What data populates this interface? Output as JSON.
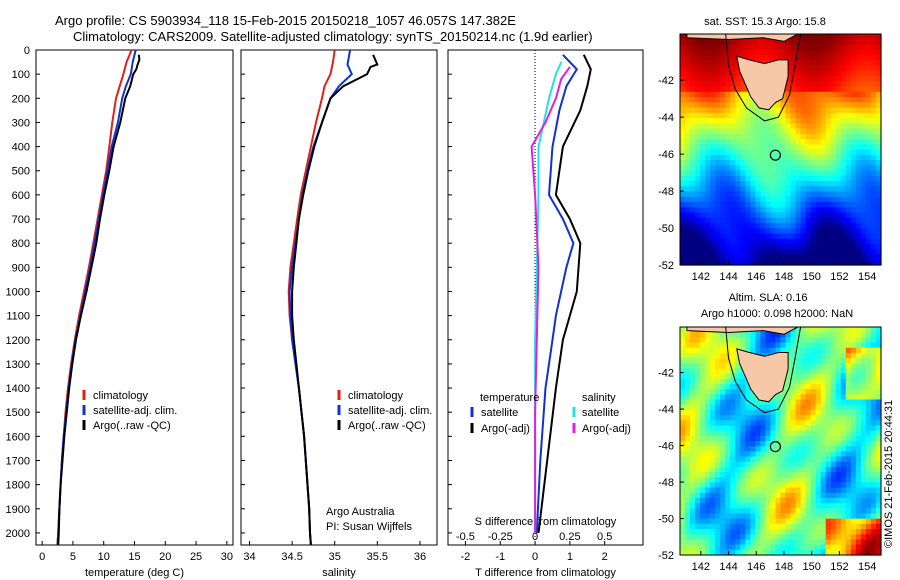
{
  "title": {
    "line1": "Argo profile: CS 5903934_118 15-Feb-2015 20150218_1057 46.057S 147.382E",
    "line2": "Climatology: CARS2009. Satellite-adjusted climatology: synTS_20150214.nc (1.9d earlier)"
  },
  "timestamp": "©IMOS 21-Feb-2015 20:44:31",
  "colors": {
    "climatology": "#e0201a",
    "satellite": "#1030d0",
    "argo": "#000000",
    "sat_salinity": "#20e0e8",
    "argo_salinity": "#e020e0"
  },
  "chart_data": [
    {
      "type": "line",
      "xlabel": "temperature (deg C)",
      "ylabel": "",
      "xlim": [
        -1,
        31
      ],
      "ylim": [
        2050,
        0
      ],
      "xticks": [
        0,
        5,
        10,
        15,
        20,
        25,
        30
      ],
      "yticks": [
        0,
        100,
        200,
        300,
        400,
        500,
        600,
        700,
        800,
        900,
        1000,
        1100,
        1200,
        1300,
        1400,
        1500,
        1600,
        1700,
        1800,
        1900,
        2000
      ],
      "legend": [
        "climatology",
        "satellite-adj. clim.",
        "Argo(..raw -QC)"
      ],
      "series": [
        {
          "name": "climatology",
          "color": "#e0201a",
          "points": [
            [
              14.5,
              0
            ],
            [
              14.2,
              20
            ],
            [
              13.7,
              50
            ],
            [
              13.2,
              100
            ],
            [
              12.6,
              150
            ],
            [
              12.0,
              200
            ],
            [
              11.4,
              300
            ],
            [
              10.9,
              400
            ],
            [
              10.4,
              500
            ],
            [
              9.7,
              600
            ],
            [
              9.0,
              700
            ],
            [
              8.3,
              800
            ],
            [
              7.6,
              900
            ],
            [
              6.8,
              1000
            ],
            [
              6.0,
              1100
            ],
            [
              5.3,
              1200
            ],
            [
              4.7,
              1300
            ],
            [
              4.2,
              1400
            ],
            [
              3.8,
              1500
            ],
            [
              3.5,
              1600
            ],
            [
              3.2,
              1700
            ],
            [
              3.0,
              1800
            ],
            [
              2.8,
              1900
            ],
            [
              2.6,
              2000
            ],
            [
              2.5,
              2050
            ]
          ]
        },
        {
          "name": "satellite-adj. clim.",
          "color": "#1030d0",
          "points": [
            [
              15.2,
              0
            ],
            [
              15.0,
              20
            ],
            [
              14.7,
              50
            ],
            [
              14.4,
              100
            ],
            [
              13.6,
              150
            ],
            [
              13.0,
              200
            ],
            [
              12.3,
              300
            ],
            [
              11.3,
              400
            ],
            [
              10.6,
              500
            ],
            [
              9.9,
              600
            ],
            [
              9.2,
              700
            ],
            [
              8.5,
              800
            ],
            [
              7.8,
              900
            ],
            [
              7.0,
              1000
            ],
            [
              6.2,
              1100
            ],
            [
              5.4,
              1200
            ],
            [
              4.8,
              1300
            ],
            [
              4.3,
              1400
            ],
            [
              3.9,
              1500
            ],
            [
              3.5,
              1600
            ],
            [
              3.2,
              1700
            ],
            [
              3.0,
              1800
            ],
            [
              2.8,
              1900
            ],
            [
              2.6,
              2000
            ],
            [
              2.5,
              2050
            ]
          ]
        },
        {
          "name": "Argo(..raw -QC)",
          "color": "#000000",
          "points": [
            [
              15.7,
              20
            ],
            [
              15.8,
              40
            ],
            [
              15.5,
              60
            ],
            [
              15.3,
              80
            ],
            [
              14.8,
              100
            ],
            [
              14.3,
              150
            ],
            [
              13.5,
              200
            ],
            [
              12.7,
              300
            ],
            [
              11.6,
              400
            ],
            [
              10.9,
              500
            ],
            [
              10.1,
              600
            ],
            [
              9.4,
              700
            ],
            [
              8.8,
              800
            ],
            [
              8.0,
              900
            ],
            [
              7.2,
              1000
            ],
            [
              6.3,
              1100
            ],
            [
              5.5,
              1200
            ],
            [
              4.9,
              1300
            ],
            [
              4.4,
              1400
            ],
            [
              4.0,
              1500
            ],
            [
              3.6,
              1600
            ],
            [
              3.3,
              1700
            ],
            [
              3.0,
              1800
            ],
            [
              2.8,
              1900
            ],
            [
              2.7,
              2000
            ],
            [
              2.6,
              2050
            ]
          ]
        }
      ]
    },
    {
      "type": "line",
      "xlabel": "salinity",
      "ylabel": "",
      "xlim": [
        33.9,
        36.2
      ],
      "ylim": [
        2050,
        0
      ],
      "xticks": [
        34,
        34.5,
        35,
        35.5,
        36
      ],
      "xticklabels": [
        "34",
        "34.5",
        "35",
        "35.5",
        "36"
      ],
      "legend": [
        "climatology",
        "satellite-adj. clim.",
        "Argo(..raw -QC)"
      ],
      "annotations": [
        "Argo Australia",
        "PI: Susan Wijffels"
      ],
      "series": [
        {
          "name": "climatology",
          "color": "#e0201a",
          "points": [
            [
              35.0,
              0
            ],
            [
              34.98,
              50
            ],
            [
              34.95,
              100
            ],
            [
              34.88,
              150
            ],
            [
              34.85,
              200
            ],
            [
              34.78,
              300
            ],
            [
              34.72,
              400
            ],
            [
              34.66,
              500
            ],
            [
              34.6,
              600
            ],
            [
              34.56,
              700
            ],
            [
              34.52,
              800
            ],
            [
              34.48,
              900
            ],
            [
              34.46,
              1000
            ],
            [
              34.47,
              1100
            ],
            [
              34.5,
              1200
            ],
            [
              34.54,
              1300
            ],
            [
              34.58,
              1400
            ],
            [
              34.61,
              1500
            ],
            [
              34.64,
              1600
            ],
            [
              34.66,
              1700
            ],
            [
              34.68,
              1800
            ],
            [
              34.7,
              1900
            ],
            [
              34.71,
              2000
            ],
            [
              34.72,
              2050
            ]
          ]
        },
        {
          "name": "satellite-adj. clim.",
          "color": "#1030d0",
          "points": [
            [
              35.18,
              0
            ],
            [
              35.15,
              60
            ],
            [
              35.2,
              100
            ],
            [
              35.05,
              150
            ],
            [
              34.95,
              200
            ],
            [
              34.85,
              300
            ],
            [
              34.75,
              400
            ],
            [
              34.68,
              500
            ],
            [
              34.62,
              600
            ],
            [
              34.58,
              700
            ],
            [
              34.54,
              800
            ],
            [
              34.5,
              900
            ],
            [
              34.47,
              1000
            ],
            [
              34.48,
              1100
            ],
            [
              34.5,
              1200
            ],
            [
              34.54,
              1300
            ],
            [
              34.58,
              1400
            ],
            [
              34.61,
              1500
            ],
            [
              34.64,
              1600
            ],
            [
              34.66,
              1700
            ],
            [
              34.68,
              1800
            ],
            [
              34.7,
              1900
            ],
            [
              34.71,
              2000
            ],
            [
              34.72,
              2050
            ]
          ]
        },
        {
          "name": "Argo(..raw -QC)",
          "color": "#000000",
          "points": [
            [
              35.45,
              20
            ],
            [
              35.5,
              60
            ],
            [
              35.42,
              70
            ],
            [
              35.38,
              100
            ],
            [
              35.1,
              150
            ],
            [
              34.95,
              200
            ],
            [
              34.85,
              300
            ],
            [
              34.76,
              400
            ],
            [
              34.69,
              500
            ],
            [
              34.63,
              600
            ],
            [
              34.58,
              700
            ],
            [
              34.55,
              800
            ],
            [
              34.52,
              900
            ],
            [
              34.5,
              1000
            ],
            [
              34.5,
              1100
            ],
            [
              34.52,
              1200
            ],
            [
              34.55,
              1300
            ],
            [
              34.58,
              1400
            ],
            [
              34.61,
              1500
            ],
            [
              34.64,
              1600
            ],
            [
              34.66,
              1700
            ],
            [
              34.68,
              1800
            ],
            [
              34.7,
              1900
            ],
            [
              34.71,
              2000
            ],
            [
              34.72,
              2050
            ]
          ]
        }
      ]
    },
    {
      "type": "line",
      "xlabel": "T difference from climatology",
      "xlabel_top": "S difference from climatology",
      "xlim": [
        -2.5,
        3.1
      ],
      "ylim": [
        2050,
        0
      ],
      "xticks": [
        -2,
        -1,
        0,
        1,
        2
      ],
      "xticks_top": [
        -0.5,
        -0.25,
        0,
        0.25,
        0.5
      ],
      "xticklabels_top": [
        "-0.5",
        "-0.25",
        "0",
        "0.25",
        "0.5"
      ],
      "legend": {
        "left_header": "temperature",
        "right_header": "salinity",
        "left": [
          "satellite",
          "Argo(-adj)"
        ],
        "right": [
          "satellite",
          "Argo(-adj)"
        ]
      },
      "series": [
        {
          "name": "satellite",
          "color": "#1030d0",
          "points": [
            [
              0.8,
              20
            ],
            [
              1.2,
              80
            ],
            [
              0.9,
              150
            ],
            [
              0.7,
              250
            ],
            [
              0.5,
              400
            ],
            [
              0.4,
              600
            ],
            [
              0.8,
              700
            ],
            [
              1.1,
              800
            ],
            [
              0.9,
              900
            ],
            [
              0.6,
              1100
            ],
            [
              0.5,
              1200
            ],
            [
              0.3,
              1400
            ],
            [
              0.15,
              1700
            ],
            [
              0.05,
              2000
            ]
          ]
        },
        {
          "name": "Argo(-adj)",
          "color": "#000000",
          "points": [
            [
              1.4,
              20
            ],
            [
              1.6,
              80
            ],
            [
              1.5,
              150
            ],
            [
              1.3,
              250
            ],
            [
              0.8,
              400
            ],
            [
              0.6,
              600
            ],
            [
              1.0,
              700
            ],
            [
              1.3,
              800
            ],
            [
              1.2,
              1000
            ],
            [
              0.8,
              1200
            ],
            [
              0.6,
              1400
            ],
            [
              0.35,
              1700
            ],
            [
              0.1,
              2000
            ]
          ]
        },
        {
          "name": "satellite",
          "color": "#20e0e8",
          "points": [
            [
              0.75,
              50
            ],
            [
              0.6,
              100
            ],
            [
              0.4,
              200
            ],
            [
              0.25,
              300
            ],
            [
              0.1,
              400
            ],
            [
              0.1,
              600
            ],
            [
              0.05,
              900
            ],
            [
              0.0,
              1200
            ],
            [
              0.0,
              1500
            ],
            [
              0.0,
              2000
            ]
          ]
        },
        {
          "name": "Argo(-adj)",
          "color": "#e020e0",
          "points": [
            [
              1.0,
              70
            ],
            [
              0.75,
              120
            ],
            [
              0.6,
              200
            ],
            [
              0.3,
              300
            ],
            [
              -0.1,
              400
            ],
            [
              0.0,
              600
            ],
            [
              0.1,
              900
            ],
            [
              0.05,
              1200
            ],
            [
              0.0,
              1500
            ],
            [
              0.0,
              2000
            ]
          ]
        }
      ]
    },
    {
      "type": "heatmap",
      "title": "sat. SST: 15.3 Argo: 15.8",
      "xticks": [
        142,
        144,
        146,
        148,
        150,
        152,
        154
      ],
      "yticks": [
        -42,
        -44,
        -46,
        -48,
        -50,
        -52
      ],
      "xlim": [
        140.5,
        155
      ],
      "ylim": [
        -52,
        -39.5
      ],
      "marker": [
        147.382,
        -46.057
      ]
    },
    {
      "type": "heatmap",
      "title_line1": "Altim. SLA: 0.16",
      "title_line2": "Argo h1000: 0.098 h2000: NaN",
      "xticks": [
        142,
        144,
        146,
        148,
        150,
        152,
        154
      ],
      "yticks": [
        -42,
        -44,
        -46,
        -48,
        -50,
        -52
      ],
      "xlim": [
        140.5,
        155
      ],
      "ylim": [
        -52,
        -39.5
      ],
      "marker": [
        147.382,
        -46.057
      ]
    }
  ]
}
